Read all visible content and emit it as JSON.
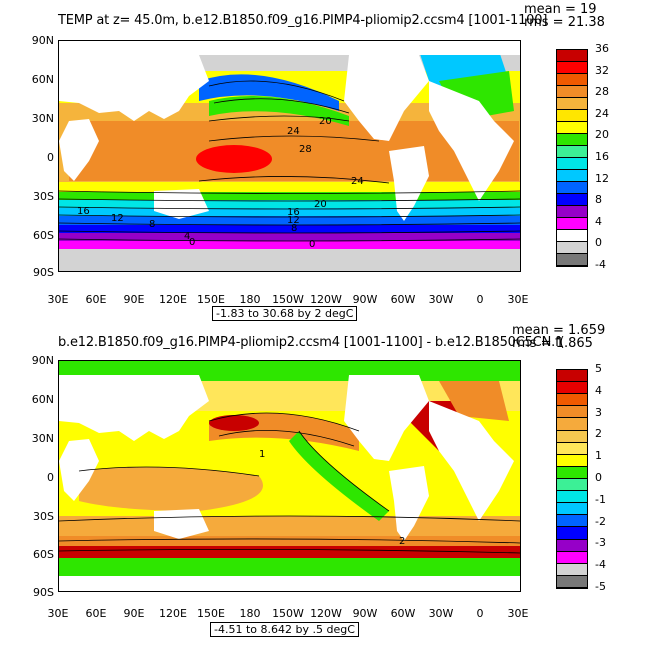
{
  "panels": [
    {
      "title": "TEMP at z=  45.0m, b.e12.B1850.f09_g16.PIMP4-pliomip2.ccsm4 [1001-1100]",
      "mean": "mean = 19",
      "rms": "rms = 21.38",
      "range": "-1.83 to 30.68 by 2 degC",
      "lat_labels": [
        "90N",
        "60N",
        "30N",
        "0",
        "30S",
        "60S",
        "90S"
      ],
      "lon_labels": [
        "30E",
        "60E",
        "90E",
        "120E",
        "150E",
        "180",
        "150W",
        "120W",
        "90W",
        "60W",
        "30W",
        "0",
        "30E"
      ],
      "contour_labels": [
        "24",
        "28",
        "20",
        "24",
        "20",
        "16",
        "12",
        "16",
        "12",
        "8",
        "8",
        "4",
        "0",
        "0"
      ],
      "colorbar": {
        "labels": [
          "36",
          "32",
          "28",
          "24",
          "20",
          "16",
          "12",
          "8",
          "4",
          "0",
          "-4"
        ],
        "colors": [
          "#c80000",
          "#ff0000",
          "#f05a00",
          "#f08c28",
          "#f5b43c",
          "#ffe600",
          "#ffff00",
          "#2ee600",
          "#3cf096",
          "#00e6e6",
          "#00c8ff",
          "#0064ff",
          "#0000ff",
          "#9600c8",
          "#ff00ff",
          "#ffffff",
          "#d3d3d3",
          "#787878"
        ]
      }
    },
    {
      "title": "b.e12.B1850.f09_g16.PIMP4-pliomip2.ccsm4 [1001-1100] - b.e12.B1850C5CN.f(",
      "mean": "mean = 1.659",
      "rms": "rms = 1.865",
      "range": "-4.51 to 8.642 by .5 degC",
      "lat_labels": [
        "90N",
        "60N",
        "30N",
        "0",
        "30S",
        "60S",
        "90S"
      ],
      "lon_labels": [
        "30E",
        "60E",
        "90E",
        "120E",
        "150E",
        "180",
        "150W",
        "120W",
        "90W",
        "60W",
        "30W",
        "0",
        "30E"
      ],
      "contour_labels": [
        "1",
        "2"
      ],
      "colorbar": {
        "labels": [
          "5",
          "4",
          "3",
          "2",
          "1",
          "0",
          "-1",
          "-2",
          "-3",
          "-4",
          "-5"
        ],
        "colors": [
          "#c80000",
          "#e60000",
          "#f05a00",
          "#f08c28",
          "#f5aa3c",
          "#f5c850",
          "#ffe65a",
          "#ffff00",
          "#2ee600",
          "#3cf096",
          "#00e6e6",
          "#00c8ff",
          "#0064ff",
          "#0000ff",
          "#9600c8",
          "#ff00ff",
          "#d3d3d3",
          "#787878"
        ]
      }
    }
  ]
}
